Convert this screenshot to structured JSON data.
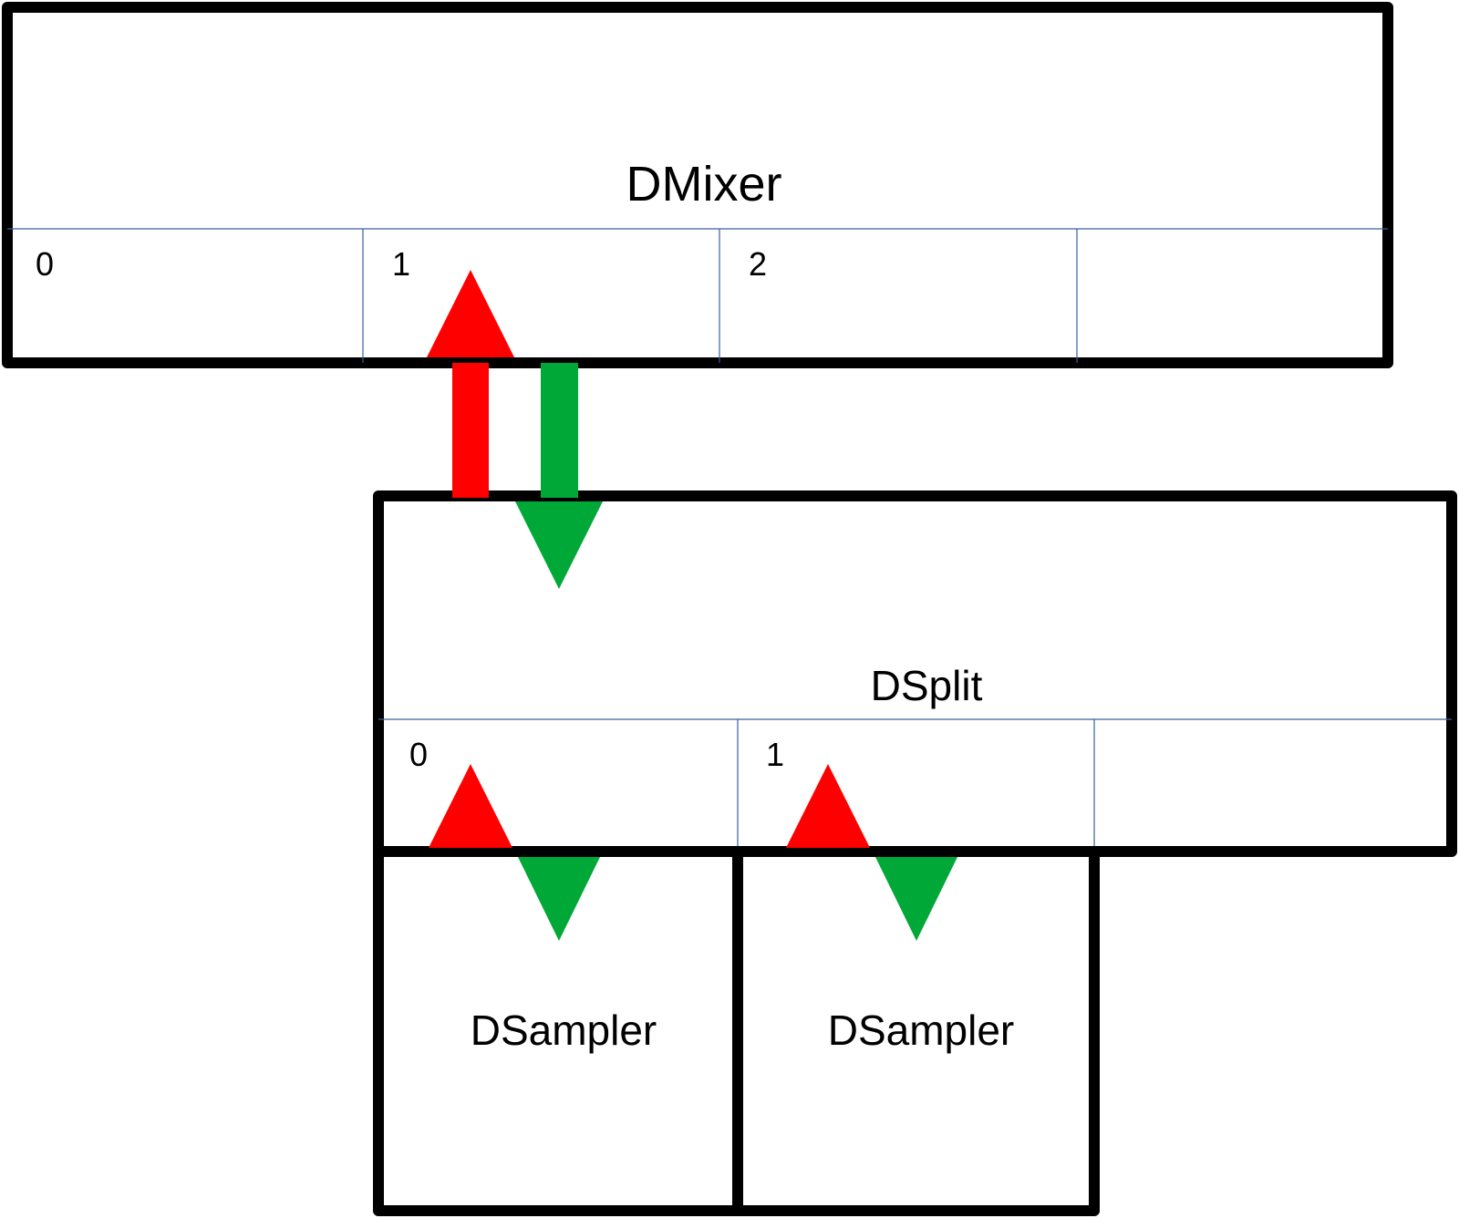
{
  "mixer": {
    "title": "DMixer",
    "slots": [
      "0",
      "1",
      "2",
      ""
    ]
  },
  "split": {
    "title": "DSplit",
    "slots": [
      "0",
      "1",
      ""
    ]
  },
  "samplers": [
    {
      "title": "DSampler"
    },
    {
      "title": "DSampler"
    }
  ],
  "colors": {
    "outline": "#000000",
    "divider": "#3a5fa0",
    "up_arrow": "#ff0000",
    "down_arrow": "#00a838"
  }
}
